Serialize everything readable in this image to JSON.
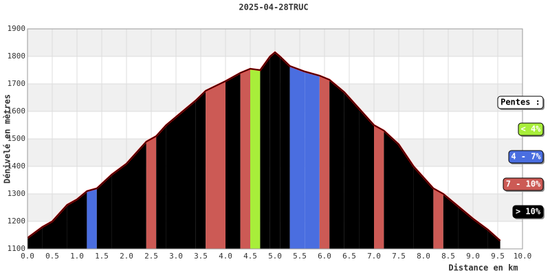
{
  "chart_data": {
    "type": "elevation-profile",
    "title": "2025-04-28TRUC",
    "x_label": "Distance en km",
    "y_label": "Dénivelé en mètres",
    "x": [
      0,
      0.3,
      0.5,
      0.8,
      1.0,
      1.2,
      1.4,
      1.7,
      2.0,
      2.4,
      2.6,
      2.8,
      3.0,
      3.4,
      3.6,
      4.0,
      4.3,
      4.5,
      4.7,
      4.9,
      5.0,
      5.1,
      5.3,
      5.6,
      5.9,
      6.1,
      6.4,
      6.7,
      7.0,
      7.2,
      7.5,
      7.8,
      8.2,
      8.4,
      8.7,
      9.0,
      9.3,
      9.55
    ],
    "series": [
      {
        "color": "#cc0000",
        "values": [
          1140,
          1180,
          1200,
          1260,
          1280,
          1310,
          1320,
          1370,
          1410,
          1490,
          1510,
          1550,
          1580,
          1640,
          1675,
          1710,
          1740,
          1755,
          1750,
          1800,
          1815,
          1800,
          1765,
          1745,
          1730,
          1715,
          1670,
          1610,
          1550,
          1530,
          1480,
          1400,
          1320,
          1300,
          1255,
          1210,
          1170,
          1130
        ]
      }
    ],
    "xlim": [
      0,
      10
    ],
    "ylim": [
      1100,
      1900
    ],
    "xticks": [
      {
        "value": 0,
        "label": "0.0"
      },
      {
        "value": 0.5,
        "label": "0.5"
      },
      {
        "value": 1,
        "label": "1.0"
      },
      {
        "value": 1.5,
        "label": "1.5"
      },
      {
        "value": 2,
        "label": "2.0"
      },
      {
        "value": 2.5,
        "label": "2.5"
      },
      {
        "value": 3,
        "label": "3.0"
      },
      {
        "value": 3.5,
        "label": "3.5"
      },
      {
        "value": 4,
        "label": "4.0"
      },
      {
        "value": 4.5,
        "label": "4.5"
      },
      {
        "value": 5,
        "label": "5.0"
      },
      {
        "value": 5.5,
        "label": "5.5"
      },
      {
        "value": 6,
        "label": "6.0"
      },
      {
        "value": 6.5,
        "label": "6.5"
      },
      {
        "value": 7,
        "label": "7.0"
      },
      {
        "value": 7.5,
        "label": "7.5"
      },
      {
        "value": 8,
        "label": "8.0"
      },
      {
        "value": 8.5,
        "label": "8.5"
      },
      {
        "value": 9,
        "label": "9.0"
      },
      {
        "value": 9.5,
        "label": "9.5"
      },
      {
        "value": 10,
        "label": "10.0"
      }
    ],
    "yticks": [
      1100,
      1200,
      1300,
      1400,
      1500,
      1600,
      1700,
      1800,
      1900
    ],
    "grid": true,
    "legend_title": "Pentes :",
    "slope_classes": [
      {
        "label": "< 4%",
        "color": "#a8ee3a",
        "max": 4
      },
      {
        "label": "4 - 7%",
        "color": "#4a6ee0",
        "max": 7
      },
      {
        "label": "7 - 10%",
        "color": "#cc5a55",
        "max": 10
      },
      {
        "label": "> 10%",
        "color": "#000000"
      }
    ]
  }
}
